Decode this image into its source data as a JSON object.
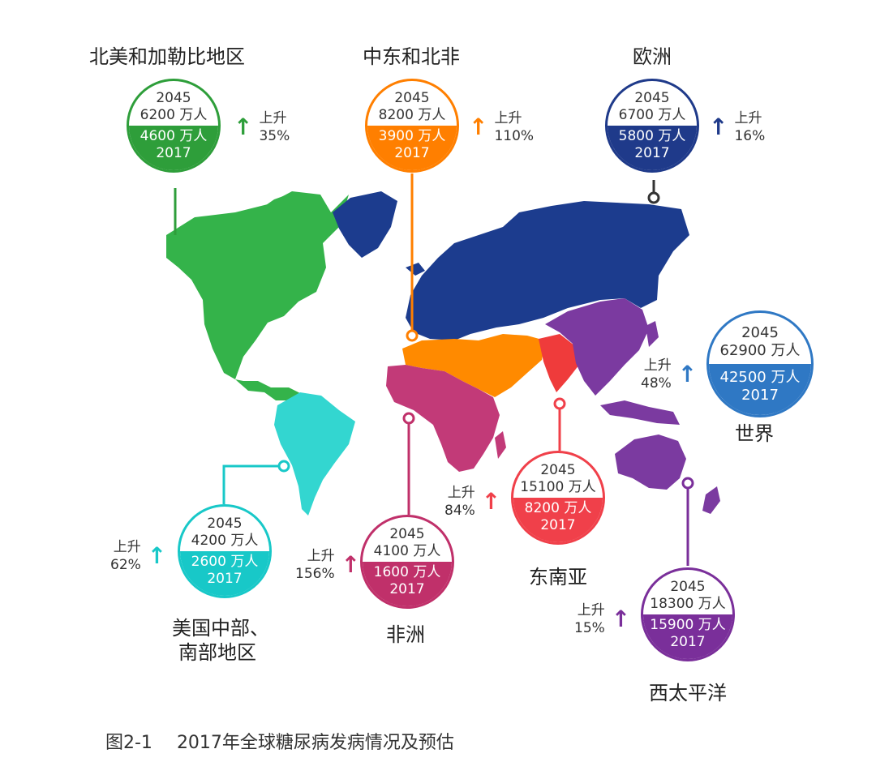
{
  "figure": {
    "label": "图2-1",
    "title": "2017年全球糖尿病发病情况及预估"
  },
  "colors": {
    "north_america": "#2e9e3a",
    "middle_east": "#ff7f00",
    "europe": "#1f3a8a",
    "south_central_america": "#18c8c8",
    "africa": "#c0306a",
    "south_east_asia": "#f0404a",
    "western_pacific": "#7a2f9a",
    "world": "#2f78c4",
    "land_green": "#34b34a",
    "land_cyan": "#33d6d0",
    "land_blue": "#1c3c8e",
    "land_orange": "#ff8a00",
    "land_magenta": "#c23a78",
    "land_red": "#ef3b3b",
    "land_purple": "#7b3aa0"
  },
  "regions": [
    {
      "id": "na",
      "name": "北美和加勒比地区",
      "y2045_label": "2045",
      "y2045_value": "6200 万人",
      "y2017_value": "4600 万人",
      "y2017_label": "2017",
      "rise_label": "上升",
      "rise_pct": "35%",
      "arrow": "↑"
    },
    {
      "id": "mena",
      "name": "中东和北非",
      "y2045_label": "2045",
      "y2045_value": "8200 万人",
      "y2017_value": "3900 万人",
      "y2017_label": "2017",
      "rise_label": "上升",
      "rise_pct": "110%",
      "arrow": "↑"
    },
    {
      "id": "eu",
      "name": "欧洲",
      "y2045_label": "2045",
      "y2045_value": "6700 万人",
      "y2017_value": "5800 万人",
      "y2017_label": "2017",
      "rise_label": "上升",
      "rise_pct": "16%",
      "arrow": "↑"
    },
    {
      "id": "world",
      "name": "世界",
      "y2045_label": "2045",
      "y2045_value": "62900 万人",
      "y2017_value": "42500 万人",
      "y2017_label": "2017",
      "rise_label": "上升",
      "rise_pct": "48%",
      "arrow": "↑"
    },
    {
      "id": "sca",
      "name": "美国中部、南部地区",
      "name_line1": "美国中部、",
      "name_line2": "南部地区",
      "y2045_label": "2045",
      "y2045_value": "4200 万人",
      "y2017_value": "2600 万人",
      "y2017_label": "2017",
      "rise_label": "上升",
      "rise_pct": "62%",
      "arrow": "↑"
    },
    {
      "id": "af",
      "name": "非洲",
      "y2045_label": "2045",
      "y2045_value": "4100 万人",
      "y2017_value": "1600 万人",
      "y2017_label": "2017",
      "rise_label": "上升",
      "rise_pct": "156%",
      "arrow": "↑"
    },
    {
      "id": "sea",
      "name": "东南亚",
      "y2045_label": "2045",
      "y2045_value": "15100 万人",
      "y2017_value": "8200 万人",
      "y2017_label": "2017",
      "rise_label": "上升",
      "rise_pct": "84%",
      "arrow": "↑"
    },
    {
      "id": "wp",
      "name": "西太平洋",
      "y2045_label": "2045",
      "y2045_value": "18300 万人",
      "y2017_value": "15900 万人",
      "y2017_label": "2017",
      "rise_label": "上升",
      "rise_pct": "15%",
      "arrow": "↑"
    }
  ]
}
